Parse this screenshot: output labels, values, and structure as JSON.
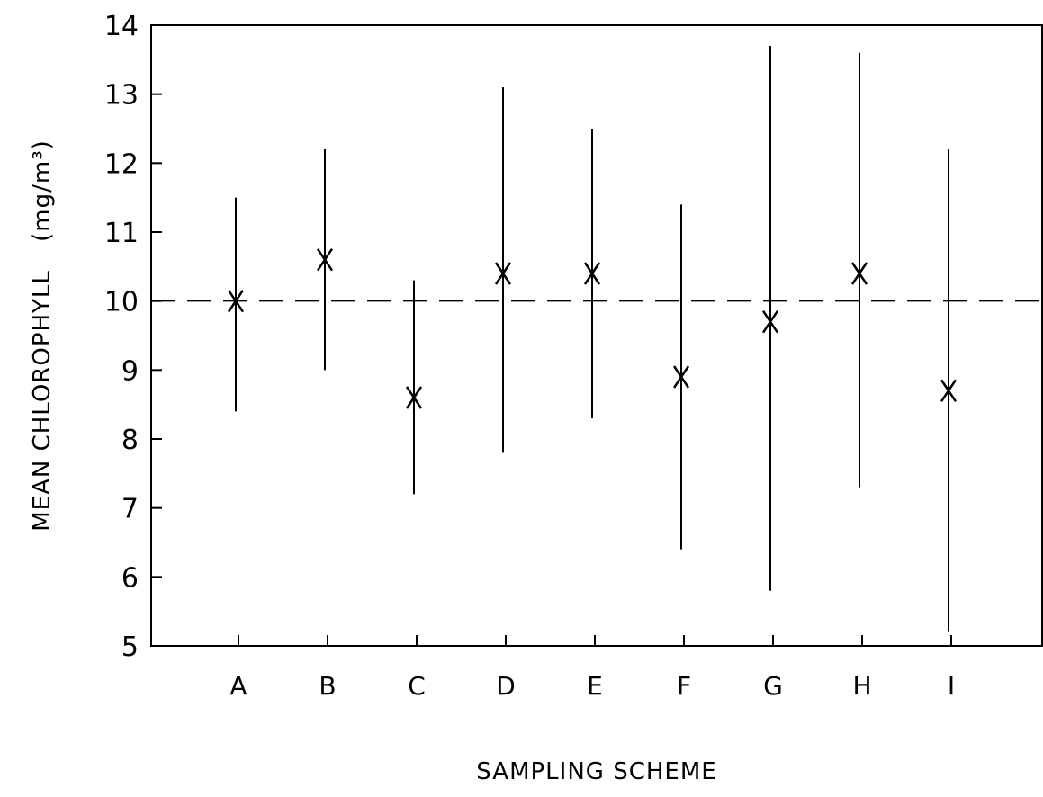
{
  "chart_data": {
    "type": "scatter",
    "xlabel": "SAMPLING SCHEME",
    "ylabel": "MEAN CHLOROPHYLL",
    "ylabel_unit": "(mg/m³)",
    "categories": [
      "A",
      "B",
      "C",
      "D",
      "E",
      "F",
      "G",
      "H",
      "I"
    ],
    "means": [
      10.0,
      10.6,
      8.6,
      10.4,
      10.4,
      8.9,
      9.7,
      10.4,
      8.7
    ],
    "lower": [
      8.4,
      9.0,
      7.2,
      7.8,
      8.3,
      6.4,
      5.8,
      7.3,
      5.2
    ],
    "upper": [
      11.5,
      12.2,
      10.3,
      13.1,
      12.5,
      11.4,
      13.7,
      13.6,
      12.2
    ],
    "reference_line": 10,
    "ylim": [
      5,
      14
    ],
    "yticks": [
      "5",
      "6",
      "7",
      "8",
      "9",
      "10",
      "11",
      "12",
      "13",
      "14"
    ],
    "grid": false
  }
}
